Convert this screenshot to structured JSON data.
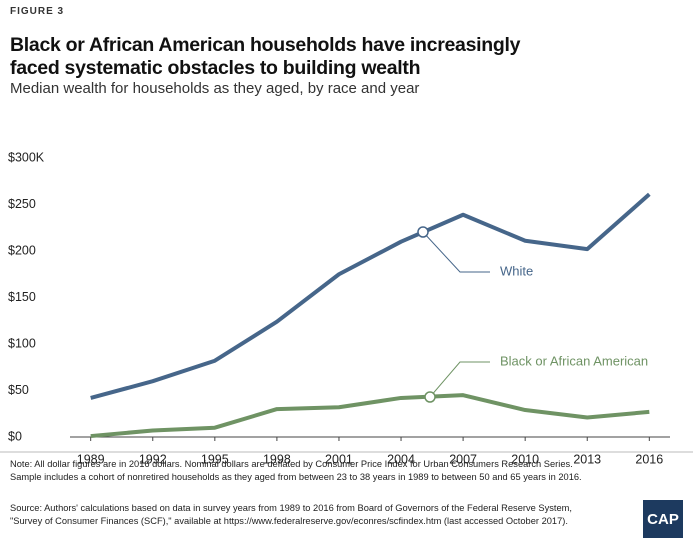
{
  "chart_data": {
    "type": "line",
    "figure_label": "FIGURE 3",
    "title": [
      "Black or African American households have increasingly",
      "faced systematic obstacles to building wealth"
    ],
    "subtitle": "Median wealth for households as they aged, by race and year",
    "x": [
      1989,
      1992,
      1995,
      1998,
      2001,
      2004,
      2007,
      2010,
      2013,
      2016
    ],
    "xlim": [
      1988,
      2017
    ],
    "xticks": [
      1989,
      1992,
      1995,
      1998,
      2001,
      2004,
      2007,
      2010,
      2013,
      2016
    ],
    "ylim": [
      0,
      300
    ],
    "yticks": [
      {
        "value": 0,
        "label": "$0"
      },
      {
        "value": 50,
        "label": "$50"
      },
      {
        "value": 100,
        "label": "$100"
      },
      {
        "value": 150,
        "label": "$150"
      },
      {
        "value": 200,
        "label": "$200"
      },
      {
        "value": 250,
        "label": "$250"
      },
      {
        "value": 300,
        "label": "$300K"
      }
    ],
    "grid": false,
    "series": [
      {
        "name": "White",
        "color": "#46668a",
        "values": [
          42,
          60,
          82,
          124,
          175,
          210,
          239,
          211,
          202,
          261
        ]
      },
      {
        "name": "Black or African American",
        "color": "#6f9364",
        "values": [
          1,
          7,
          10,
          30,
          32,
          42,
          45,
          29,
          21,
          27
        ]
      }
    ],
    "notes": [
      "Note: All dollar figures are in 2016 dollars. Nominal dollars are deflated by Consumer Price Index for Urban Consumers Research Series.",
      "Sample includes a cohort of nonretired households as they aged from between 23 to 38 years in 1989 to between 50 and 65 years in 2016."
    ],
    "source": [
      "Source: Authors' calculations based on data in survey years from 1989 to 2016 from Board of Governors of the Federal Reserve System,",
      "\"Survey of Consumer Finances (SCF),\" available at https://www.federalreserve.gov/econres/scfindex.htm (last accessed October 2017)."
    ],
    "logo": "CAP"
  }
}
